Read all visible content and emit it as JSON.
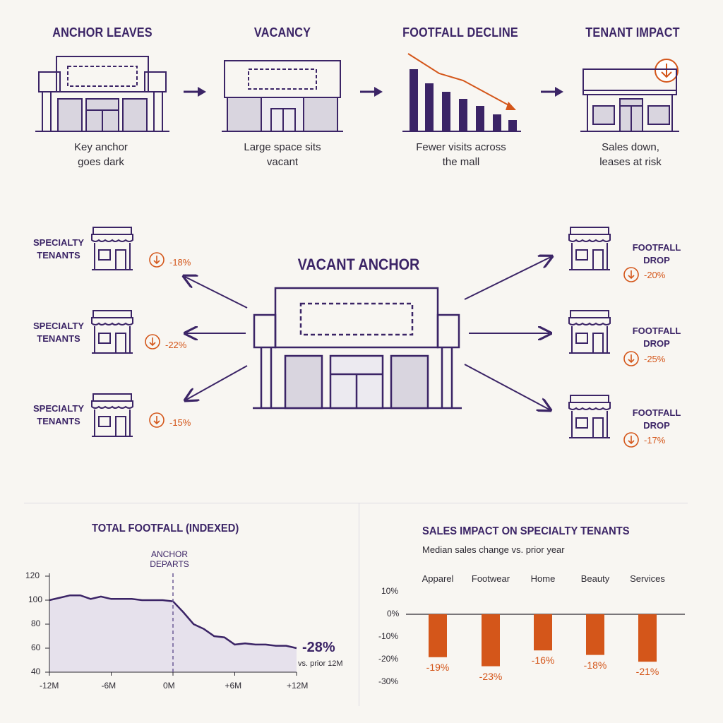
{
  "stages": [
    {
      "title": "ANCHOR LEAVES",
      "caption_line1": "Key anchor",
      "caption_line2": "goes dark"
    },
    {
      "title": "VACANCY",
      "caption_line1": "Large space sits",
      "caption_line2": "vacant"
    },
    {
      "title": "FOOTFALL DECLINE",
      "caption_line1": "Fewer visits across",
      "caption_line2": "the mall"
    },
    {
      "title": "TENANT IMPACT",
      "caption_line1": "Sales down,",
      "caption_line2": "leases at risk"
    }
  ],
  "hub": {
    "title": "VACANT ANCHOR"
  },
  "left_tenants": [
    {
      "label_line1": "SPECIALTY",
      "label_line2": "TENANTS",
      "change": "-18%"
    },
    {
      "label_line1": "SPECIALTY",
      "label_line2": "TENANTS",
      "change": "-22%"
    },
    {
      "label_line1": "SPECIALTY",
      "label_line2": "TENANTS",
      "change": "-15%"
    }
  ],
  "right_tenants": [
    {
      "label_line1": "FOOTFALL",
      "label_line2": "DROP",
      "change": "-20%"
    },
    {
      "label_line1": "FOOTFALL",
      "label_line2": "DROP",
      "change": "-25%"
    },
    {
      "label_line1": "FOOTFALL",
      "label_line2": "DROP",
      "change": "-17%"
    }
  ],
  "colors": {
    "purple": "#3b2466",
    "orange": "#d4561a",
    "fill": "#d9d5df",
    "area": "#e6e1ec"
  },
  "chart_data": [
    {
      "type": "area",
      "title": "TOTAL FOOTFALL (INDEXED)",
      "x_ticks": [
        "-12M",
        "-6M",
        "0M",
        "+6M",
        "+12M"
      ],
      "y_ticks": [
        "120",
        "100",
        "80",
        "60",
        "40"
      ],
      "ylim": [
        40,
        120
      ],
      "xlim": [
        -12,
        12
      ],
      "x": [
        -12,
        -11,
        -10,
        -9,
        -8,
        -7,
        -6,
        -5,
        -4,
        -3,
        -2,
        -1,
        0,
        1,
        2,
        3,
        4,
        5,
        6,
        7,
        8,
        9,
        10,
        11,
        12
      ],
      "values": [
        100,
        102,
        104,
        104,
        101,
        103,
        101,
        101,
        101,
        100,
        100,
        100,
        99,
        90,
        80,
        76,
        70,
        69,
        63,
        64,
        63,
        63,
        62,
        62,
        60
      ],
      "event": {
        "line1": "ANCHOR",
        "line2": "DEPARTS",
        "x": 0
      },
      "change": "-28%",
      "change_note": "vs. prior 12M"
    },
    {
      "type": "bar",
      "title": "SALES IMPACT ON SPECIALTY TENANTS",
      "subtitle": "Median sales change vs. prior year",
      "categories": [
        "Apparel",
        "Footwear",
        "Home",
        "Beauty",
        "Services"
      ],
      "values": [
        -19,
        -23,
        -16,
        -18,
        -21
      ],
      "labels": [
        "-19%",
        "-23%",
        "-16%",
        "-18%",
        "-21%"
      ],
      "y_ticks": [
        "10%",
        "0%",
        "-10%",
        "-20%",
        "-30%"
      ],
      "ylim": [
        -30,
        10
      ]
    }
  ]
}
